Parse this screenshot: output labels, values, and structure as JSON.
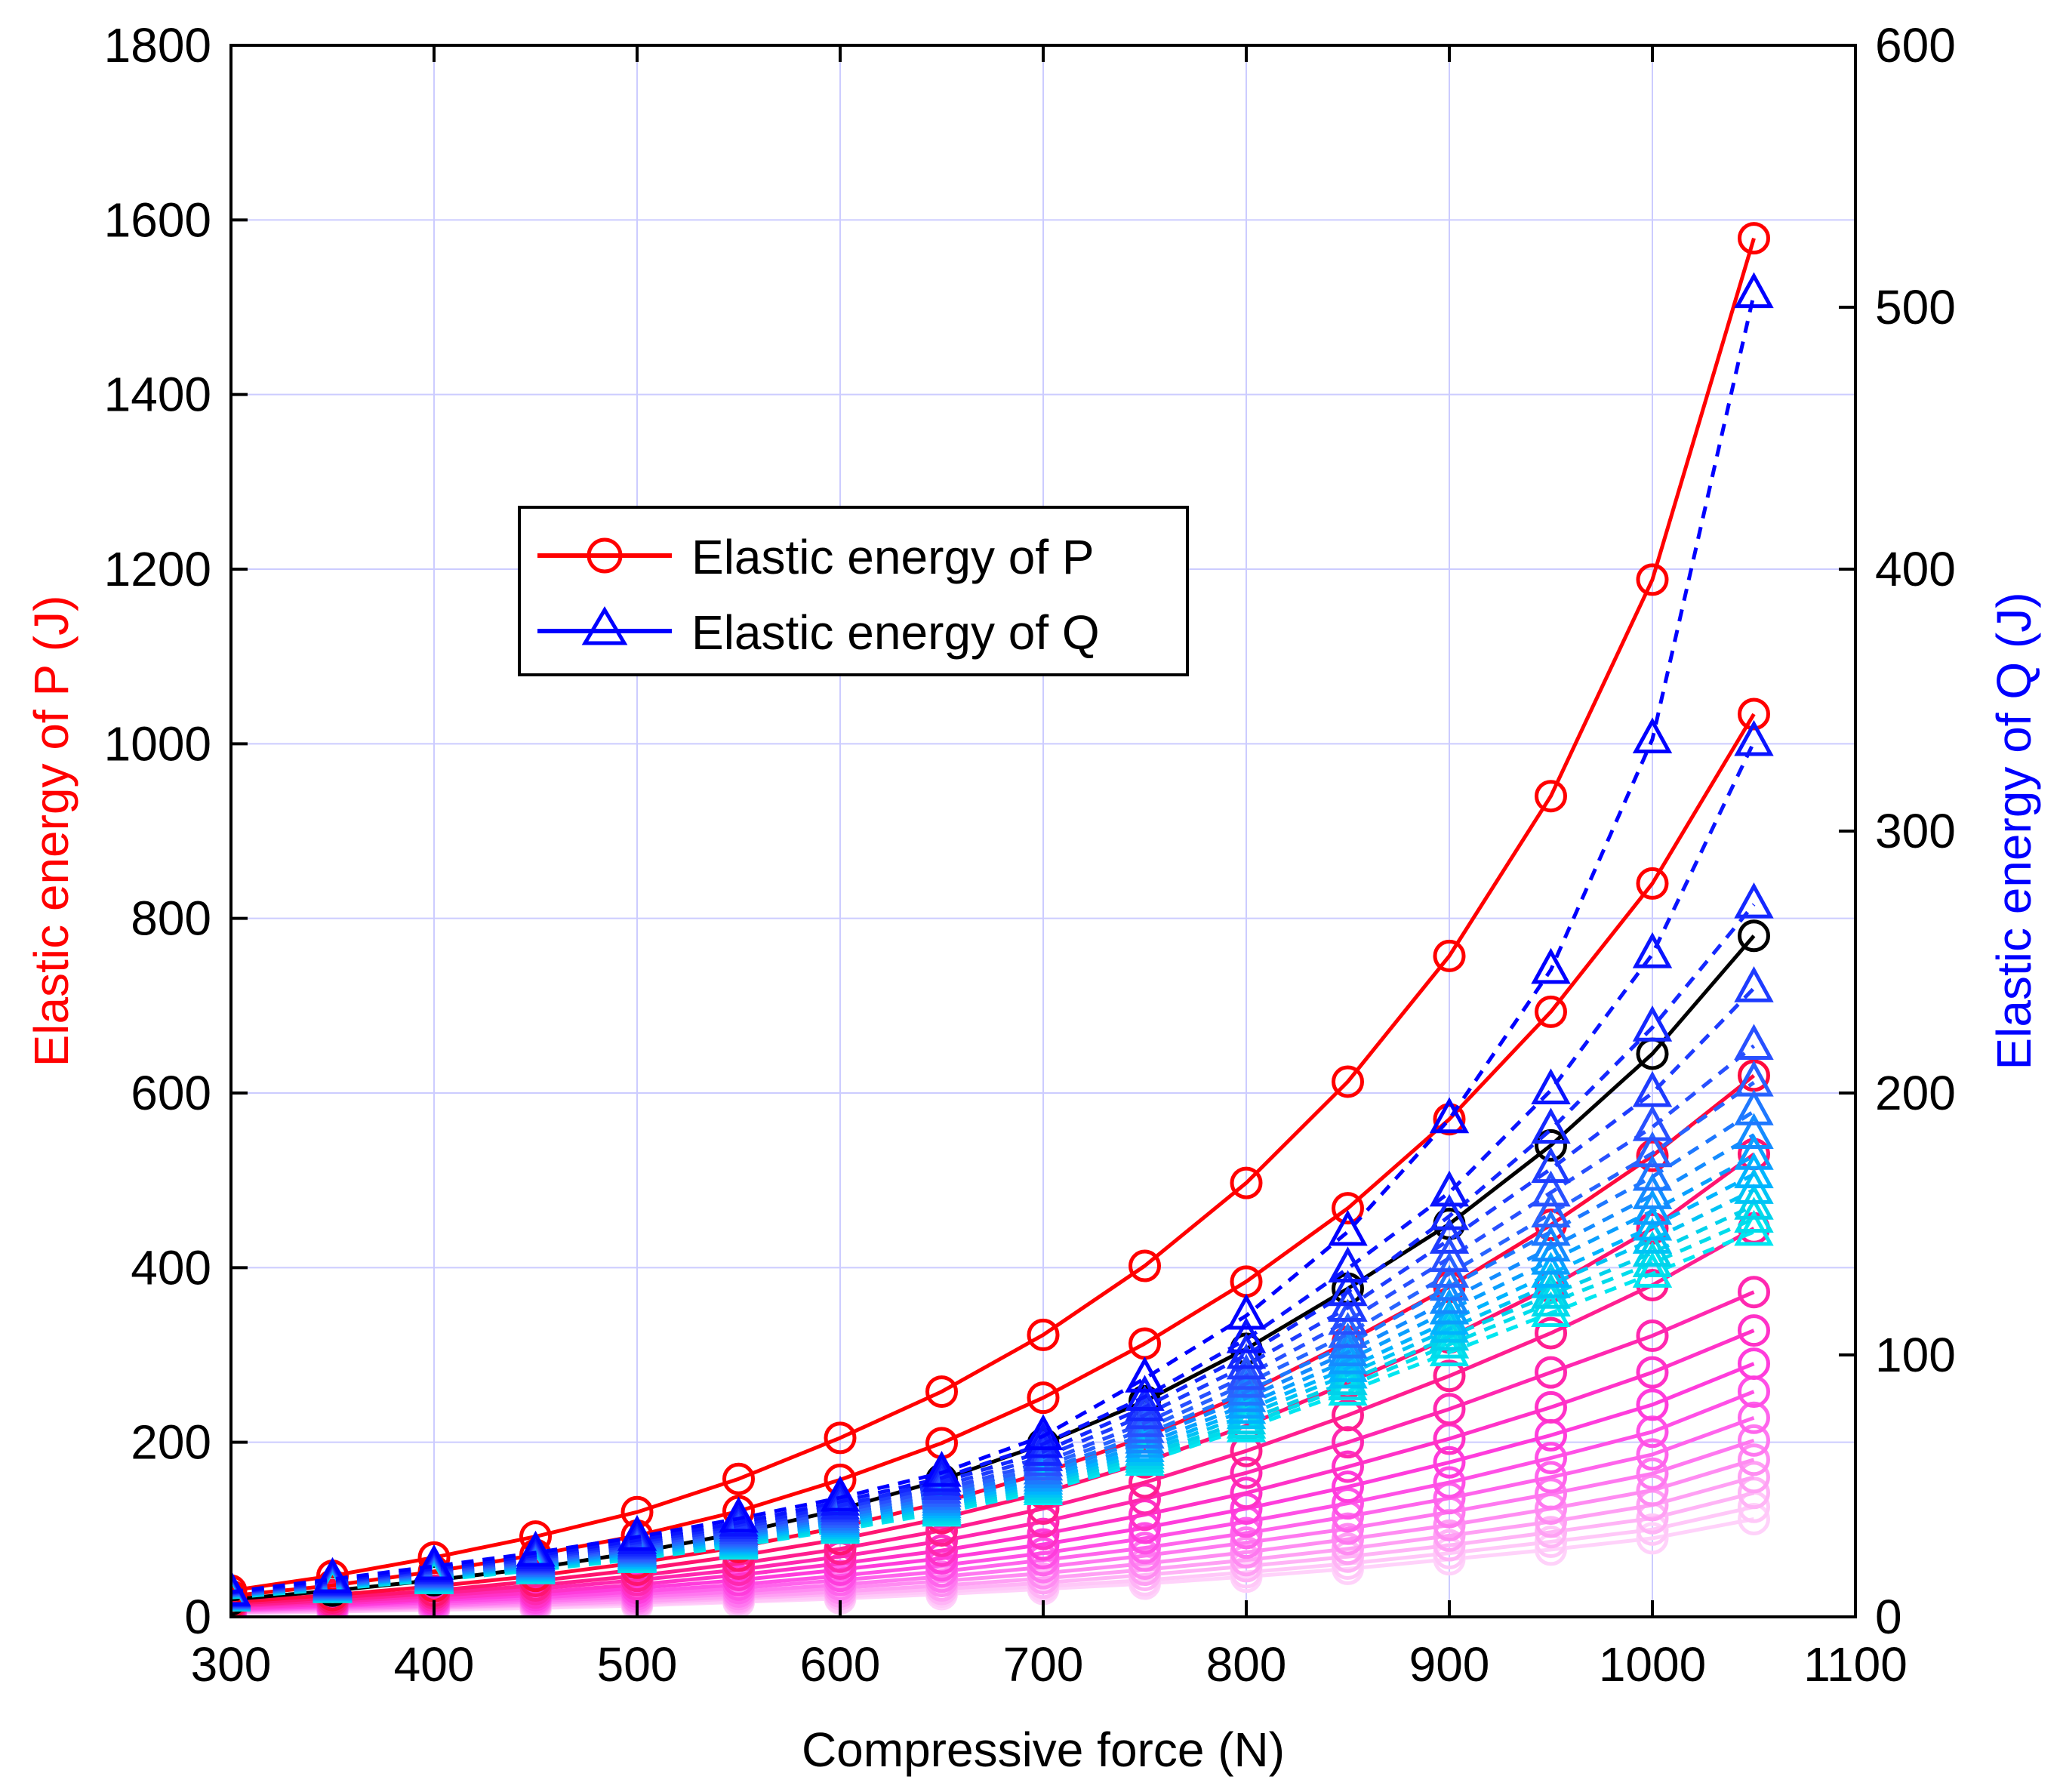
{
  "chart_data": {
    "type": "line",
    "title": "",
    "xlabel": "Compressive force (N)",
    "ylabel_left": "Elastic energy of P (J)",
    "ylabel_right": "Elastic energy of Q (J)",
    "xlim": [
      300,
      1100
    ],
    "ylim_left": [
      0,
      1800
    ],
    "ylim_right": [
      0,
      600
    ],
    "xticks": [
      "300",
      "400",
      "500",
      "600",
      "700",
      "800",
      "900",
      "1000",
      "1100"
    ],
    "yticks_left": [
      "0",
      "200",
      "400",
      "600",
      "800",
      "1000",
      "1200",
      "1400",
      "1600",
      "1800"
    ],
    "yticks_right": [
      "0",
      "100",
      "200",
      "300",
      "400",
      "500",
      "600"
    ],
    "grid": true,
    "legend": {
      "position": "upper-left-center",
      "entries": [
        "Elastic energy of P",
        "Elastic energy of Q"
      ]
    },
    "colors": {
      "p_axis": "#ff0000",
      "q_axis": "#0000ff",
      "grid": "#ccccff",
      "axis": "#000000"
    },
    "x": [
      300,
      350,
      400,
      450,
      500,
      550,
      600,
      650,
      700,
      750,
      800,
      850,
      900,
      950,
      1000,
      1050
    ],
    "series_P": [
      {
        "name": "P1",
        "axis": "left",
        "color": "#ff0000",
        "values": [
          30,
          47,
          68,
          92,
          120,
          158,
          205,
          258,
          323,
          402,
          497,
          613,
          757,
          940,
          1188,
          1579
        ]
      },
      {
        "name": "P2",
        "axis": "left",
        "color": "#ff0000",
        "values": [
          24,
          36,
          52,
          71,
          93,
          121,
          157,
          199,
          251,
          313,
          384,
          468,
          570,
          693,
          840,
          1034
        ]
      },
      {
        "name": "P3",
        "axis": "left",
        "color": "#000000",
        "values": [
          20,
          30,
          42,
          56,
          74,
          96,
          123,
          157,
          198,
          247,
          307,
          376,
          450,
          540,
          645,
          780
        ]
      },
      {
        "name": "P4",
        "axis": "left",
        "color": "#ff0a3c",
        "values": [
          17,
          25,
          35,
          47,
          62,
          80,
          103,
          131,
          165,
          206,
          256,
          315,
          378,
          449,
          528,
          620
        ]
      },
      {
        "name": "P5",
        "axis": "left",
        "color": "#ff1470",
        "values": [
          15,
          22,
          30,
          41,
          54,
          70,
          89,
          113,
          142,
          177,
          219,
          268,
          320,
          378,
          445,
          530
        ]
      },
      {
        "name": "P6",
        "axis": "left",
        "color": "#ff1e90",
        "values": [
          13,
          19,
          27,
          36,
          47,
          61,
          78,
          99,
          124,
          154,
          190,
          231,
          276,
          325,
          380,
          445
        ]
      },
      {
        "name": "P7",
        "axis": "left",
        "color": "#ff28b0",
        "values": [
          12,
          17,
          24,
          32,
          42,
          54,
          69,
          87,
          109,
          135,
          165,
          200,
          238,
          280,
          322,
          372
        ]
      },
      {
        "name": "P8",
        "axis": "left",
        "color": "#ff32c8",
        "values": [
          10,
          15,
          21,
          28,
          37,
          48,
          61,
          76,
          95,
          117,
          142,
          172,
          204,
          240,
          280,
          328
        ]
      },
      {
        "name": "P9",
        "axis": "left",
        "color": "#ff3cdc",
        "values": [
          9,
          13,
          19,
          25,
          33,
          42,
          54,
          67,
          83,
          102,
          124,
          149,
          177,
          208,
          243,
          290
        ]
      },
      {
        "name": "P10",
        "axis": "left",
        "color": "#ff50e6",
        "values": [
          8,
          12,
          17,
          22,
          29,
          37,
          47,
          59,
          73,
          90,
          109,
          130,
          154,
          182,
          212,
          258
        ]
      },
      {
        "name": "P11",
        "axis": "left",
        "color": "#ff64ec",
        "values": [
          7,
          11,
          15,
          20,
          26,
          33,
          42,
          52,
          65,
          79,
          96,
          115,
          136,
          160,
          186,
          228
        ]
      },
      {
        "name": "P12",
        "axis": "left",
        "color": "#ff78f0",
        "values": [
          7,
          10,
          13,
          18,
          23,
          29,
          37,
          46,
          57,
          70,
          85,
          101,
          120,
          141,
          164,
          202
        ]
      },
      {
        "name": "P13",
        "axis": "left",
        "color": "#ff8cf2",
        "values": [
          6,
          9,
          12,
          16,
          21,
          26,
          33,
          41,
          50,
          61,
          74,
          89,
          105,
          124,
          145,
          180
        ]
      },
      {
        "name": "P14",
        "axis": "left",
        "color": "#ffa0f4",
        "values": [
          5,
          8,
          11,
          14,
          18,
          23,
          29,
          36,
          44,
          54,
          65,
          78,
          93,
          109,
          128,
          160
        ]
      },
      {
        "name": "P15",
        "axis": "left",
        "color": "#ffb4f6",
        "values": [
          5,
          7,
          10,
          13,
          16,
          21,
          26,
          32,
          39,
          48,
          58,
          69,
          82,
          97,
          113,
          142
        ]
      },
      {
        "name": "P16",
        "axis": "left",
        "color": "#ffc8f8",
        "values": [
          4,
          6,
          9,
          11,
          15,
          18,
          23,
          29,
          35,
          42,
          51,
          61,
          73,
          86,
          100,
          126
        ]
      },
      {
        "name": "P17",
        "axis": "left",
        "color": "#ffd2fa",
        "values": [
          4,
          6,
          8,
          10,
          13,
          17,
          21,
          26,
          32,
          38,
          46,
          55,
          66,
          77,
          90,
          112
        ]
      }
    ],
    "series_Q": [
      {
        "name": "Q1",
        "axis": "right",
        "color": "#0000ff",
        "values": [
          9.5,
          14.4,
          19.3,
          24.5,
          30.5,
          37.5,
          45.5,
          55,
          69,
          91,
          115,
          147,
          190,
          247,
          335,
          505
        ]
      },
      {
        "name": "Q2",
        "axis": "right",
        "color": "#0a14ff",
        "values": [
          9.3,
          13.8,
          18.5,
          23.5,
          29.3,
          36,
          44,
          53,
          66,
          84,
          106,
          133,
          162,
          201,
          253,
          334
        ]
      },
      {
        "name": "Q3",
        "axis": "right",
        "color": "#1428ff",
        "values": [
          9.1,
          13.4,
          18,
          22.8,
          28.4,
          35,
          42.5,
          51.5,
          63,
          80,
          100,
          124,
          153,
          186,
          225,
          272
        ]
      },
      {
        "name": "Q4",
        "axis": "right",
        "color": "#1e3cff",
        "values": [
          8.9,
          13,
          17.5,
          22.2,
          27.6,
          34,
          41.5,
          50,
          61,
          77,
          96,
          118,
          144,
          171,
          200,
          240
        ]
      },
      {
        "name": "Q5",
        "axis": "right",
        "color": "#2850ff",
        "values": [
          8.7,
          12.7,
          17,
          21.6,
          26.9,
          33,
          40.3,
          48.6,
          59,
          74,
          92,
          113,
          137,
          162,
          187,
          218
        ]
      },
      {
        "name": "Q6",
        "axis": "right",
        "color": "#2864ff",
        "values": [
          8.5,
          12.4,
          16.6,
          21.1,
          26.2,
          32.2,
          39.3,
          47.3,
          57.4,
          71.7,
          89,
          108,
          131,
          154,
          177,
          204
        ]
      },
      {
        "name": "Q7",
        "axis": "right",
        "color": "#1e78ff",
        "values": [
          8.3,
          12.1,
          16.2,
          20.6,
          25.6,
          31.4,
          38.3,
          46.1,
          55.9,
          69.6,
          86,
          104,
          126,
          147,
          168,
          193
        ]
      },
      {
        "name": "Q8",
        "axis": "right",
        "color": "#148cff",
        "values": [
          8.2,
          11.8,
          15.8,
          20.1,
          25,
          30.7,
          37.4,
          45,
          54.5,
          67.7,
          83.5,
          101,
          121,
          141,
          161,
          184
        ]
      },
      {
        "name": "Q9",
        "axis": "right",
        "color": "#0aa0ff",
        "values": [
          8,
          11.6,
          15.5,
          19.6,
          24.4,
          30,
          36.6,
          44,
          53.2,
          66,
          81,
          98,
          117,
          136,
          155,
          176
        ]
      },
      {
        "name": "Q10",
        "axis": "right",
        "color": "#00b4ff",
        "values": [
          7.9,
          11.4,
          15.2,
          19.2,
          23.9,
          29.4,
          35.8,
          43,
          52,
          64.4,
          79,
          95,
          113,
          131,
          149,
          169
        ]
      },
      {
        "name": "Q11",
        "axis": "right",
        "color": "#00c3f5",
        "values": [
          7.7,
          11.2,
          14.9,
          18.8,
          23.4,
          28.8,
          35.1,
          42.1,
          50.9,
          63,
          77,
          92.5,
          110,
          127,
          144,
          163
        ]
      },
      {
        "name": "Q12",
        "axis": "right",
        "color": "#00d2eb",
        "values": [
          7.6,
          11,
          14.6,
          18.5,
          23,
          28.2,
          34.4,
          41.3,
          49.9,
          61.7,
          75,
          90,
          107,
          123,
          139,
          157
        ]
      },
      {
        "name": "Q13",
        "axis": "right",
        "color": "#00dceb",
        "values": [
          7.5,
          10.8,
          14.3,
          18.1,
          22.5,
          27.7,
          33.8,
          40.5,
          48.9,
          60.4,
          73.4,
          88,
          104,
          120,
          135,
          152
        ]
      },
      {
        "name": "Q14",
        "axis": "right",
        "color": "#00e6f0",
        "values": [
          7.4,
          10.6,
          14,
          17.8,
          22.1,
          27.2,
          33.2,
          39.8,
          48,
          59.2,
          72,
          86,
          101,
          116,
          131,
          147
        ]
      }
    ]
  }
}
